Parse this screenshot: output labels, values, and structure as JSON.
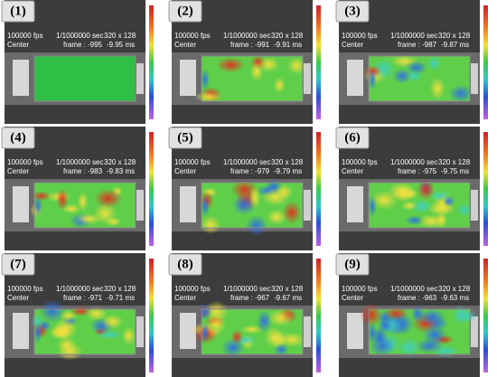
{
  "panels": [
    {
      "label": "(1)",
      "fps": "100000 fps",
      "position": "Center",
      "shutter": "1/1000000 sec",
      "resolution": "320 x 128",
      "frame": "frame : -995",
      "time": "-9.95 ms"
    },
    {
      "label": "(2)",
      "fps": "100000 fps",
      "position": "Center",
      "shutter": "1/1000000 sec",
      "resolution": "320 x 128",
      "frame": "frame : -991",
      "time": "-9.91 ms"
    },
    {
      "label": "(3)",
      "fps": "100000 fps",
      "position": "Center",
      "shutter": "1/1000000 sec",
      "resolution": "320 x 128",
      "frame": "frame : -987",
      "time": "-9.87 ms"
    },
    {
      "label": "(4)",
      "fps": "100000 fps",
      "position": "Center",
      "shutter": "1/1000000 sec",
      "resolution": "320 x 128",
      "frame": "frame : -983",
      "time": "-9.83 ms"
    },
    {
      "label": "(5)",
      "fps": "100000 fps",
      "position": "Center",
      "shutter": "1/1000000 sec",
      "resolution": "320 x 128",
      "frame": "frame : -979",
      "time": "-9.79 ms"
    },
    {
      "label": "(6)",
      "fps": "100000 fps",
      "position": "Center",
      "shutter": "1/1000000 sec",
      "resolution": "320 x 128",
      "frame": "frame : -975",
      "time": "-9.75 ms"
    },
    {
      "label": "(7)",
      "fps": "100000 fps",
      "position": "Center",
      "shutter": "1/1000000 sec",
      "resolution": "320 x 128",
      "frame": "frame : -971",
      "time": "-9.71 ms"
    },
    {
      "label": "(8)",
      "fps": "100000 fps",
      "position": "Center",
      "shutter": "1/1000000 sec",
      "resolution": "320 x 128",
      "frame": "frame : -967",
      "time": "-9.67 ms"
    },
    {
      "label": "(9)",
      "fps": "100000 fps",
      "position": "Center",
      "shutter": "1/1000000 sec",
      "resolution": "320 x 128",
      "frame": "frame : -963",
      "time": "-9.63 ms"
    }
  ]
}
